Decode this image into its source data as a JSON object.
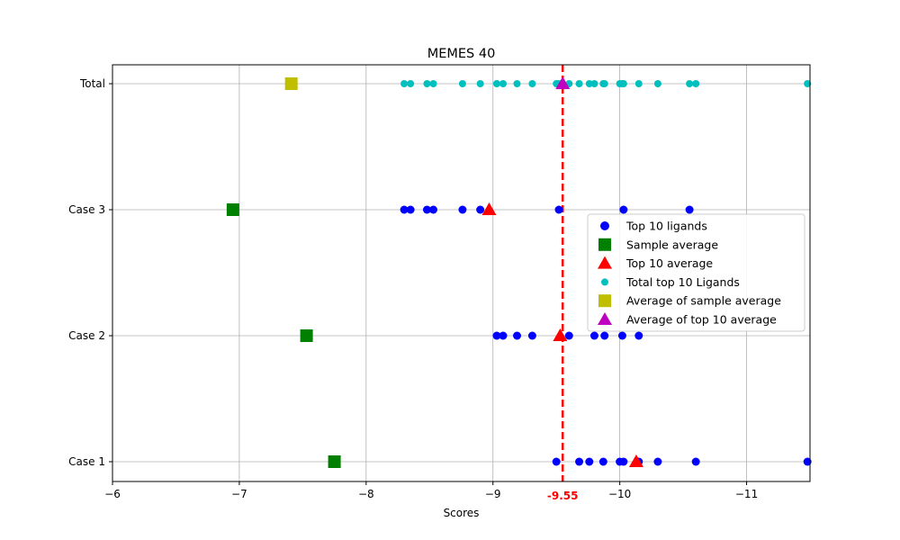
{
  "chart_data": {
    "type": "scatter",
    "title": "MEMES 40",
    "xlabel": "Scores",
    "ylabel": "",
    "xlim": [
      -6,
      -11.5
    ],
    "x_inverted": true,
    "x_ticks": [
      -6,
      -7,
      -8,
      -9,
      -10,
      -11
    ],
    "x_tick_labels": [
      "−6",
      "−7",
      "−8",
      "−9",
      "−10",
      "−11"
    ],
    "categories": [
      "Case 1",
      "Case 2",
      "Case 3",
      "Total"
    ],
    "grid": true,
    "legend_position": "center-right",
    "reference_line": {
      "x": -9.55,
      "label": "-9.55",
      "color": "#ff0000",
      "style": "dashed"
    },
    "series": [
      {
        "name": "Top 10 ligands",
        "marker": "circle",
        "color": "#0000ff",
        "points": [
          {
            "category": "Case 1",
            "x": -9.5
          },
          {
            "category": "Case 1",
            "x": -9.68
          },
          {
            "category": "Case 1",
            "x": -9.76
          },
          {
            "category": "Case 1",
            "x": -9.87
          },
          {
            "category": "Case 1",
            "x": -10.0
          },
          {
            "category": "Case 1",
            "x": -10.03
          },
          {
            "category": "Case 1",
            "x": -10.15
          },
          {
            "category": "Case 1",
            "x": -10.3
          },
          {
            "category": "Case 1",
            "x": -10.6
          },
          {
            "category": "Case 1",
            "x": -11.48
          },
          {
            "category": "Case 2",
            "x": -9.03
          },
          {
            "category": "Case 2",
            "x": -9.08
          },
          {
            "category": "Case 2",
            "x": -9.19
          },
          {
            "category": "Case 2",
            "x": -9.31
          },
          {
            "category": "Case 2",
            "x": -9.6
          },
          {
            "category": "Case 2",
            "x": -9.8
          },
          {
            "category": "Case 2",
            "x": -9.88
          },
          {
            "category": "Case 2",
            "x": -10.02
          },
          {
            "category": "Case 2",
            "x": -10.15
          },
          {
            "category": "Case 3",
            "x": -8.3
          },
          {
            "category": "Case 3",
            "x": -8.35
          },
          {
            "category": "Case 3",
            "x": -8.48
          },
          {
            "category": "Case 3",
            "x": -8.53
          },
          {
            "category": "Case 3",
            "x": -8.76
          },
          {
            "category": "Case 3",
            "x": -8.9
          },
          {
            "category": "Case 3",
            "x": -9.52
          },
          {
            "category": "Case 3",
            "x": -10.03
          },
          {
            "category": "Case 3",
            "x": -10.55
          }
        ]
      },
      {
        "name": "Sample average",
        "marker": "square",
        "color": "#008000",
        "points": [
          {
            "category": "Case 1",
            "x": -7.75
          },
          {
            "category": "Case 2",
            "x": -7.53
          },
          {
            "category": "Case 3",
            "x": -6.95
          }
        ]
      },
      {
        "name": "Top 10 average",
        "marker": "triangle",
        "color": "#ff0000",
        "points": [
          {
            "category": "Case 1",
            "x": -10.13
          },
          {
            "category": "Case 2",
            "x": -9.53
          },
          {
            "category": "Case 3",
            "x": -8.97
          }
        ]
      },
      {
        "name": "Total top 10 Ligands",
        "marker": "small-circle",
        "color": "#00bfbf",
        "points": [
          {
            "category": "Total",
            "x": -8.3
          },
          {
            "category": "Total",
            "x": -8.35
          },
          {
            "category": "Total",
            "x": -8.48
          },
          {
            "category": "Total",
            "x": -8.53
          },
          {
            "category": "Total",
            "x": -8.76
          },
          {
            "category": "Total",
            "x": -8.9
          },
          {
            "category": "Total",
            "x": -9.03
          },
          {
            "category": "Total",
            "x": -9.08
          },
          {
            "category": "Total",
            "x": -9.19
          },
          {
            "category": "Total",
            "x": -9.31
          },
          {
            "category": "Total",
            "x": -9.5
          },
          {
            "category": "Total",
            "x": -9.52
          },
          {
            "category": "Total",
            "x": -9.6
          },
          {
            "category": "Total",
            "x": -9.68
          },
          {
            "category": "Total",
            "x": -9.76
          },
          {
            "category": "Total",
            "x": -9.8
          },
          {
            "category": "Total",
            "x": -9.87
          },
          {
            "category": "Total",
            "x": -9.88
          },
          {
            "category": "Total",
            "x": -10.0
          },
          {
            "category": "Total",
            "x": -10.02
          },
          {
            "category": "Total",
            "x": -10.03
          },
          {
            "category": "Total",
            "x": -10.15
          },
          {
            "category": "Total",
            "x": -10.3
          },
          {
            "category": "Total",
            "x": -10.55
          },
          {
            "category": "Total",
            "x": -10.6
          },
          {
            "category": "Total",
            "x": -11.48
          }
        ]
      },
      {
        "name": "Average of sample average",
        "marker": "square",
        "color": "#bfbf00",
        "points": [
          {
            "category": "Total",
            "x": -7.41
          }
        ]
      },
      {
        "name": "Average of top 10 average",
        "marker": "triangle",
        "color": "#bf00bf",
        "points": [
          {
            "category": "Total",
            "x": -9.55
          }
        ]
      }
    ]
  }
}
